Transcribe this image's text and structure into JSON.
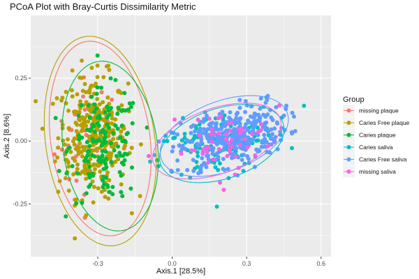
{
  "chart_data": {
    "type": "scatter",
    "title": "PCoA Plot with Bray-Curtis Dissimilarity Metric",
    "xlabel": "Axis.1   [28.5%]",
    "ylabel": "Axis.2   [8.6%]",
    "xlim": [
      -0.57,
      0.64
    ],
    "ylim": [
      -0.46,
      0.5
    ],
    "xticks": [
      -0.3,
      0.0,
      0.3,
      0.6
    ],
    "xtick_labels": [
      "-0.3",
      "0.0",
      "0.3",
      "0.6"
    ],
    "yticks": [
      -0.25,
      0.0,
      0.25
    ],
    "ytick_labels": [
      "-0.25",
      "0.00",
      "0.25"
    ],
    "grid": true,
    "legend_position": "right",
    "legend_title": "Group",
    "series": [
      {
        "name": "missing plaque",
        "color": "#F8766D",
        "n": 35,
        "center": [
          -0.33,
          0.01
        ],
        "spread": [
          0.07,
          0.12
        ],
        "rot": 0,
        "ellipse": {
          "cx": -0.29,
          "cy": 0.01,
          "rx": 0.2,
          "ry": 0.39,
          "angle": 8
        }
      },
      {
        "name": "Caries Free plaque",
        "color": "#B79F00",
        "n": 320,
        "center": [
          -0.32,
          0.02
        ],
        "spread": [
          0.07,
          0.12
        ],
        "rot": 0,
        "ellipse": {
          "cx": -0.29,
          "cy": 0.0,
          "rx": 0.22,
          "ry": 0.42,
          "angle": 8
        }
      },
      {
        "name": "Caries plaque",
        "color": "#00BA38",
        "n": 150,
        "center": [
          -0.27,
          -0.02
        ],
        "spread": [
          0.07,
          0.11
        ],
        "rot": 0,
        "ellipse": {
          "cx": -0.25,
          "cy": -0.02,
          "rx": 0.19,
          "ry": 0.34,
          "angle": 8
        }
      },
      {
        "name": "Caries saliva",
        "color": "#00BFC4",
        "n": 140,
        "center": [
          0.18,
          -0.01
        ],
        "spread": [
          0.12,
          0.06
        ],
        "rot": 16,
        "ellipse": {
          "cx": 0.2,
          "cy": -0.01,
          "rx": 0.26,
          "ry": 0.14,
          "angle": 18
        }
      },
      {
        "name": "Caries Free saliva",
        "color": "#619CFF",
        "n": 330,
        "center": [
          0.24,
          0.02
        ],
        "spread": [
          0.11,
          0.055
        ],
        "rot": 16,
        "ellipse": {
          "cx": 0.21,
          "cy": 0.02,
          "rx": 0.27,
          "ry": 0.14,
          "angle": 20
        }
      },
      {
        "name": "missing saliva",
        "color": "#F564E3",
        "n": 55,
        "center": [
          0.2,
          0.0
        ],
        "spread": [
          0.1,
          0.06
        ],
        "rot": 16,
        "ellipse": {
          "cx": 0.18,
          "cy": 0.0,
          "rx": 0.27,
          "ry": 0.13,
          "angle": 19
        }
      }
    ]
  }
}
